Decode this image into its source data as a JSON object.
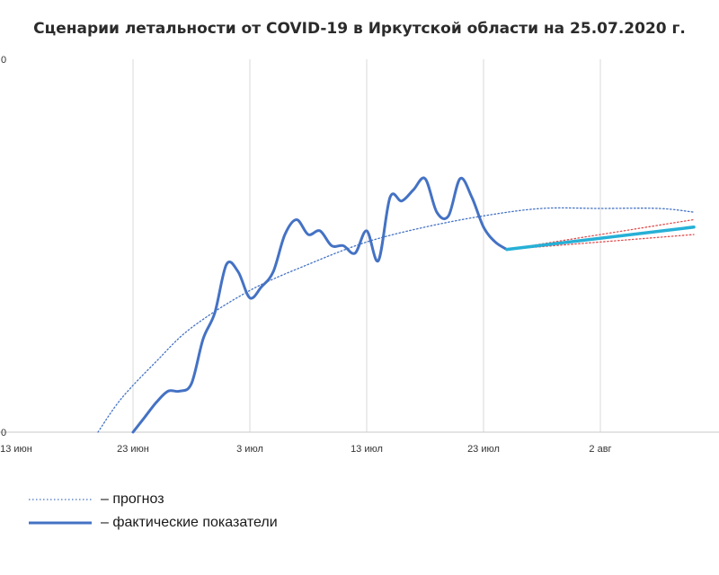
{
  "chart_data": {
    "type": "line",
    "title": "Сценарии летальности от COVID-19 в Иркутской области  на 25.07.2020 г.",
    "x_ticks": [
      "13 июн",
      "23 июн",
      "3 июл",
      "13 июл",
      "23 июл",
      "2 авг"
    ],
    "x_tick_positions": [
      0,
      10,
      20,
      30,
      40,
      50
    ],
    "x_range": [
      0,
      59
    ],
    "y_range": [
      0,
      100
    ],
    "y_ticks": [
      "0",
      "0"
    ],
    "grid": "vertical",
    "series": [
      {
        "name": "– фактические показатели",
        "color": "#4472c4",
        "style": "solid",
        "points": [
          [
            10,
            0
          ],
          [
            11,
            4
          ],
          [
            12,
            8
          ],
          [
            13,
            11
          ],
          [
            14,
            11
          ],
          [
            15,
            13
          ],
          [
            16,
            25
          ],
          [
            17,
            32
          ],
          [
            18,
            45
          ],
          [
            19,
            43
          ],
          [
            20,
            36
          ],
          [
            21,
            39
          ],
          [
            22,
            43
          ],
          [
            23,
            53
          ],
          [
            24,
            57
          ],
          [
            25,
            53
          ],
          [
            26,
            54
          ],
          [
            27,
            50
          ],
          [
            28,
            50
          ],
          [
            29,
            48
          ],
          [
            30,
            54
          ],
          [
            31,
            46
          ],
          [
            32,
            63
          ],
          [
            33,
            62
          ],
          [
            34,
            65
          ],
          [
            35,
            68
          ],
          [
            36,
            59
          ],
          [
            37,
            58
          ],
          [
            38,
            68
          ],
          [
            39,
            63
          ],
          [
            40,
            55
          ],
          [
            41,
            51
          ],
          [
            42,
            49
          ]
        ]
      },
      {
        "name": "– прогноз",
        "color": "#4472c4",
        "style": "dotted",
        "points": [
          [
            7,
            0
          ],
          [
            9,
            9
          ],
          [
            12,
            19
          ],
          [
            15,
            28
          ],
          [
            20,
            38
          ],
          [
            25,
            45
          ],
          [
            30,
            51
          ],
          [
            35,
            55
          ],
          [
            40,
            58
          ],
          [
            45,
            60
          ],
          [
            50,
            60
          ],
          [
            55,
            60
          ],
          [
            58,
            59
          ]
        ]
      },
      {
        "color": "#26b0d6",
        "style": "solid",
        "points": [
          [
            42,
            49
          ],
          [
            58,
            55
          ]
        ]
      },
      {
        "color": "#e05050",
        "style": "dotted",
        "points": [
          [
            42,
            49
          ],
          [
            58,
            57
          ]
        ]
      },
      {
        "color": "#e05050",
        "style": "dotted",
        "points": [
          [
            42,
            49
          ],
          [
            58,
            53
          ]
        ]
      }
    ]
  },
  "legend": {
    "forecast": "– прогноз",
    "actual": "– фактические показатели"
  }
}
